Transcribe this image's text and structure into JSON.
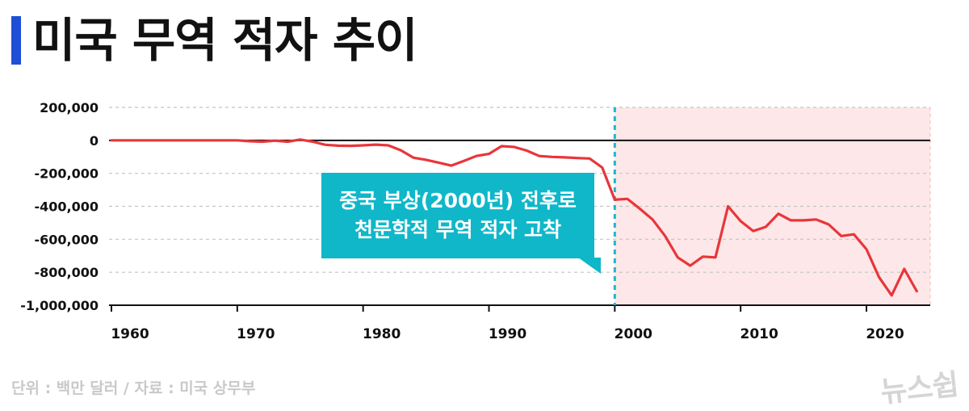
{
  "title": "미국 무역 적자 추이",
  "source": "단위 : 백만 달러 / 자료 : 미국 상무부",
  "brand": "뉴스쉽",
  "callout": {
    "line1": "중국 부상(2000년) 전후로",
    "line2": "천문학적 무역 적자 고착"
  },
  "colors": {
    "accent": "#1f4fd6",
    "line": "#e8363a",
    "highlight_fill": "#fde7e8",
    "marker": "#1bb8c9",
    "callout": "#0fb7c9"
  },
  "chart_data": {
    "type": "line",
    "title": "미국 무역 적자 추이",
    "xlim": [
      1960,
      2025
    ],
    "ylim": [
      -1000000,
      200000
    ],
    "x_ticks": [
      "1960",
      "1970",
      "1980",
      "1990",
      "2000",
      "2010",
      "2020"
    ],
    "y_ticks": [
      {
        "value": 200000,
        "label": "200,000"
      },
      {
        "value": 0,
        "label": "0"
      },
      {
        "value": -200000,
        "label": "-200,000"
      },
      {
        "value": -400000,
        "label": "-400,000"
      },
      {
        "value": -600000,
        "label": "-600,000"
      },
      {
        "value": -800000,
        "label": "-800,000"
      },
      {
        "value": -1000000,
        "label": "-1,000,000"
      }
    ],
    "highlight_from": 2000,
    "marker_x": 2000,
    "grid": true,
    "series": [
      {
        "x": [
          1960,
          1961,
          1962,
          1963,
          1964,
          1965,
          1966,
          1967,
          1968,
          1969,
          1970,
          1971,
          1972,
          1973,
          1974,
          1975,
          1976,
          1977,
          1978,
          1979,
          1980,
          1981,
          1982,
          1983,
          1984,
          1985,
          1986,
          1987,
          1988,
          1989,
          1990,
          1991,
          1992,
          1993,
          1994,
          1995,
          1996,
          1997,
          1998,
          1999,
          2000,
          2001,
          2002,
          2003,
          2004,
          2005,
          2006,
          2007,
          2008,
          2009,
          2010,
          2011,
          2012,
          2013,
          2014,
          2015,
          2016,
          2017,
          2018,
          2019,
          2020,
          2021,
          2022,
          2023,
          2024
        ],
        "values": [
          0,
          0,
          0,
          0,
          0,
          0,
          0,
          0,
          0,
          0,
          0,
          -5000,
          -8000,
          -2000,
          -8000,
          5000,
          -8000,
          -27000,
          -32000,
          -33000,
          -30000,
          -26000,
          -30000,
          -60000,
          -105000,
          -118000,
          -135000,
          -153000,
          -125000,
          -95000,
          -82000,
          -35000,
          -40000,
          -62000,
          -95000,
          -100000,
          -103000,
          -107000,
          -110000,
          -165000,
          -360000,
          -355000,
          -415000,
          -480000,
          -580000,
          -710000,
          -760000,
          -705000,
          -710000,
          -400000,
          -490000,
          -550000,
          -525000,
          -445000,
          -485000,
          -485000,
          -480000,
          -510000,
          -580000,
          -570000,
          -660000,
          -830000,
          -940000,
          -780000,
          -915000
        ]
      }
    ]
  }
}
